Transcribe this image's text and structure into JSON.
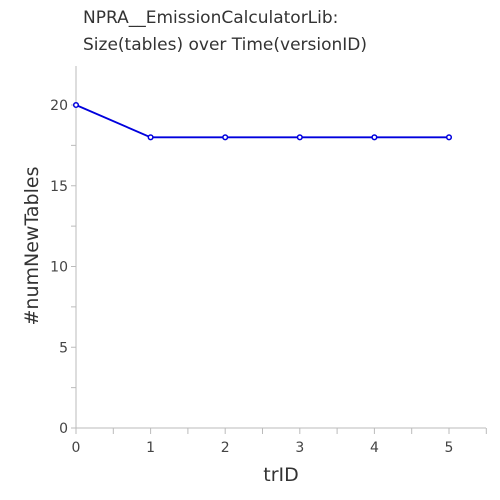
{
  "chart_data": {
    "type": "line",
    "title_lines": [
      "NPRA__EmissionCalculatorLib:",
      "Size(tables) over Time(versionID)"
    ],
    "xlabel": "trID",
    "ylabel": "#numNewTables",
    "x": [
      0,
      1,
      2,
      3,
      4,
      5
    ],
    "series": [
      {
        "values": [
          20,
          18,
          18,
          18,
          18,
          18
        ],
        "color": "#0000dd"
      }
    ],
    "xlim": [
      0,
      5.5
    ],
    "ylim": [
      0,
      22.5
    ],
    "xticks": [
      0,
      1,
      2,
      3,
      4,
      5
    ],
    "xtick_labels": [
      "0",
      "1",
      "2",
      "3",
      "4",
      "5"
    ],
    "yticks": [
      0,
      5,
      10,
      15,
      20
    ],
    "ytick_labels": [
      "0",
      "5",
      "10",
      "15",
      "20"
    ],
    "x_minor_step": 0.5,
    "y_minor_step": 2.5,
    "grid": false,
    "axis_color": "#bbbbbb"
  }
}
